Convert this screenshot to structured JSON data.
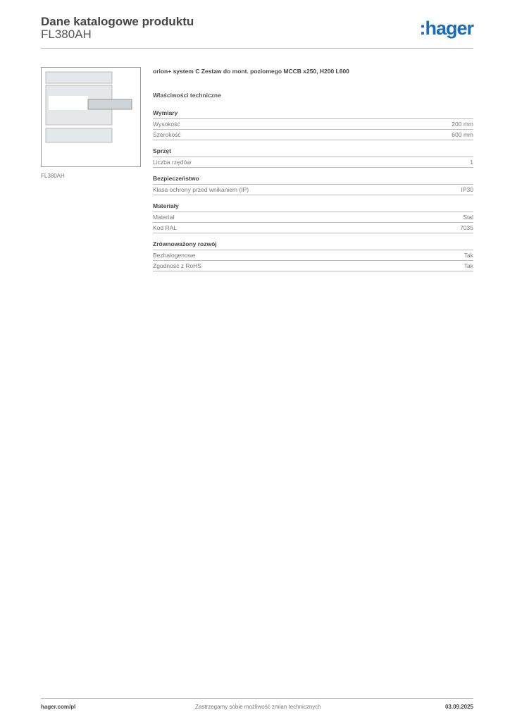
{
  "header": {
    "title": "Dane katalogowe produktu",
    "code": "FL380AH",
    "logo": ":hager",
    "logo_color": "#1a6bb8"
  },
  "image_caption": "FL380AH",
  "product_title": "orion+ system C Zestaw do mont. poziomego MCCB x250, H200 L600",
  "section_title": "Właściwości techniczne",
  "sections": [
    {
      "name": "Wymiary",
      "rows": [
        {
          "label": "Wysokość",
          "value": "200 mm"
        },
        {
          "label": "Szerokość",
          "value": "600 mm"
        }
      ]
    },
    {
      "name": "Sprzęt",
      "rows": [
        {
          "label": "Liczba rzędów",
          "value": "1"
        }
      ]
    },
    {
      "name": "Bezpieczeństwo",
      "rows": [
        {
          "label": "Klasa ochrony przed wnikaniem (IP)",
          "value": "IP30"
        }
      ]
    },
    {
      "name": "Materiały",
      "rows": [
        {
          "label": "Materiał",
          "value": "Stal"
        },
        {
          "label": "Kod RAL",
          "value": "7035"
        }
      ]
    },
    {
      "name": "Zrównoważony rozwój",
      "rows": [
        {
          "label": "Bezhalogenowe",
          "value": "Tak"
        },
        {
          "label": "Zgodność z RoHS",
          "value": "Tak"
        }
      ]
    }
  ],
  "footer": {
    "left": "hager.com/pl",
    "center": "Zastrzegamy sobie możliwość zmian technicznych",
    "right": "03.09.2025"
  }
}
